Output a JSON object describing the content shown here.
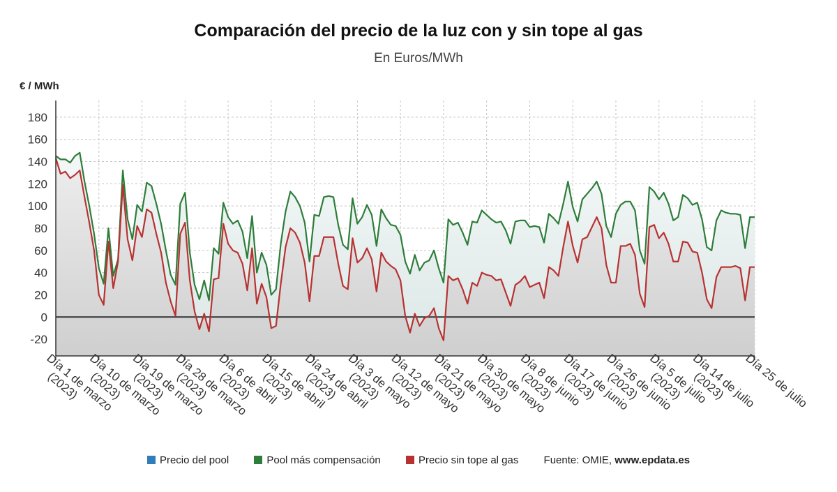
{
  "chart_data": {
    "type": "line",
    "title": "Comparación del precio de la luz con y sin tope al gas",
    "subtitle": "En Euros/MWh",
    "ylabel": "€ / MWh",
    "ylim": [
      -35,
      195
    ],
    "yticks": [
      -20,
      0,
      20,
      40,
      60,
      80,
      100,
      120,
      140,
      160,
      180
    ],
    "grid": true,
    "legend_position": "bottom",
    "x_start": "2023-03-01",
    "x_end": "2023-07-25",
    "tick_labels": [
      [
        "Día 1 de marzo",
        "(2023)"
      ],
      [
        "Día 10 de marzo",
        "(2023)"
      ],
      [
        "Día 19 de marzo",
        "(2023)"
      ],
      [
        "Día 28 de marzo",
        "(2023)"
      ],
      [
        "Día 6 de abril",
        "(2023)"
      ],
      [
        "Día 15 de abril",
        "(2023)"
      ],
      [
        "Día 24 de abril",
        "(2023)"
      ],
      [
        "Día 3 de mayo",
        "(2023)"
      ],
      [
        "Día 12 de mayo",
        "(2023)"
      ],
      [
        "Día 21 de mayo",
        "(2023)"
      ],
      [
        "Día 30 de mayo",
        "(2023)"
      ],
      [
        "Día 8 de junio",
        "(2023)"
      ],
      [
        "Día 17 de junio",
        "(2023)"
      ],
      [
        "Día 26 de junio",
        "(2023)"
      ],
      [
        "Día 5 de julio",
        "(2023)"
      ],
      [
        "Día 14 de julio",
        "(2023)"
      ],
      [
        "Día 25 de julio",
        ""
      ]
    ],
    "series": [
      {
        "name": "Precio del pool",
        "color": "#2f7dbb",
        "values": []
      },
      {
        "name": "Pool más compensación",
        "color": "#2e7d3a",
        "values": [
          145,
          142,
          142,
          139,
          145,
          148,
          122,
          100,
          75,
          44,
          30,
          80,
          37,
          52,
          132,
          88,
          70,
          101,
          95,
          121,
          118,
          102,
          84,
          60,
          38,
          29,
          102,
          112,
          58,
          29,
          16,
          33,
          15,
          62,
          57,
          103,
          90,
          84,
          87,
          77,
          53,
          91,
          40,
          58,
          47,
          20,
          25,
          66,
          95,
          113,
          108,
          100,
          85,
          50,
          92,
          91,
          108,
          109,
          108,
          83,
          65,
          61,
          107,
          84,
          90,
          101,
          92,
          64,
          97,
          89,
          83,
          82,
          74,
          50,
          39,
          56,
          42,
          49,
          51,
          60,
          44,
          31,
          88,
          83,
          85,
          76,
          65,
          86,
          85,
          96,
          92,
          88,
          85,
          86,
          78,
          66,
          86,
          87,
          87,
          81,
          82,
          81,
          67,
          93,
          89,
          84,
          102,
          122,
          99,
          86,
          106,
          111,
          116,
          122,
          111,
          82,
          72,
          93,
          101,
          104,
          104,
          96,
          60,
          48,
          117,
          113,
          106,
          112,
          102,
          87,
          90,
          110,
          107,
          101,
          103,
          88,
          63,
          60,
          87,
          96,
          94,
          93,
          93,
          92,
          62,
          90,
          90
        ]
      },
      {
        "name": "Precio sin tope al gas",
        "color": "#b83232",
        "values": [
          143,
          129,
          131,
          125,
          128,
          132,
          108,
          85,
          60,
          20,
          11,
          68,
          26,
          50,
          119,
          70,
          51,
          82,
          72,
          97,
          94,
          75,
          58,
          31,
          14,
          1,
          75,
          85,
          33,
          5,
          -11,
          3,
          -13,
          34,
          35,
          84,
          66,
          60,
          58,
          48,
          24,
          62,
          12,
          30,
          18,
          -10,
          -8,
          30,
          63,
          80,
          76,
          67,
          49,
          14,
          55,
          55,
          72,
          72,
          72,
          48,
          28,
          25,
          71,
          49,
          53,
          62,
          52,
          23,
          58,
          50,
          46,
          43,
          33,
          1,
          -14,
          3,
          -8,
          -1,
          1,
          8,
          -10,
          -21,
          37,
          33,
          35,
          25,
          12,
          31,
          28,
          40,
          38,
          37,
          33,
          34,
          22,
          10,
          29,
          32,
          37,
          27,
          29,
          31,
          17,
          45,
          42,
          37,
          63,
          86,
          64,
          49,
          70,
          72,
          81,
          90,
          80,
          47,
          31,
          31,
          64,
          64,
          66,
          56,
          21,
          9,
          81,
          83,
          71,
          76,
          66,
          50,
          50,
          68,
          67,
          59,
          58,
          40,
          16,
          8,
          36,
          45,
          45,
          45,
          46,
          44,
          15,
          45,
          45
        ]
      }
    ]
  },
  "legend": {
    "items": [
      {
        "label": "Precio del pool",
        "color": "#2f7dbb"
      },
      {
        "label": "Pool más compensación",
        "color": "#2e7d3a"
      },
      {
        "label": "Precio sin tope al gas",
        "color": "#b83232"
      }
    ],
    "source_prefix": "Fuente: OMIE, ",
    "source_site": "www.epdata.es"
  }
}
